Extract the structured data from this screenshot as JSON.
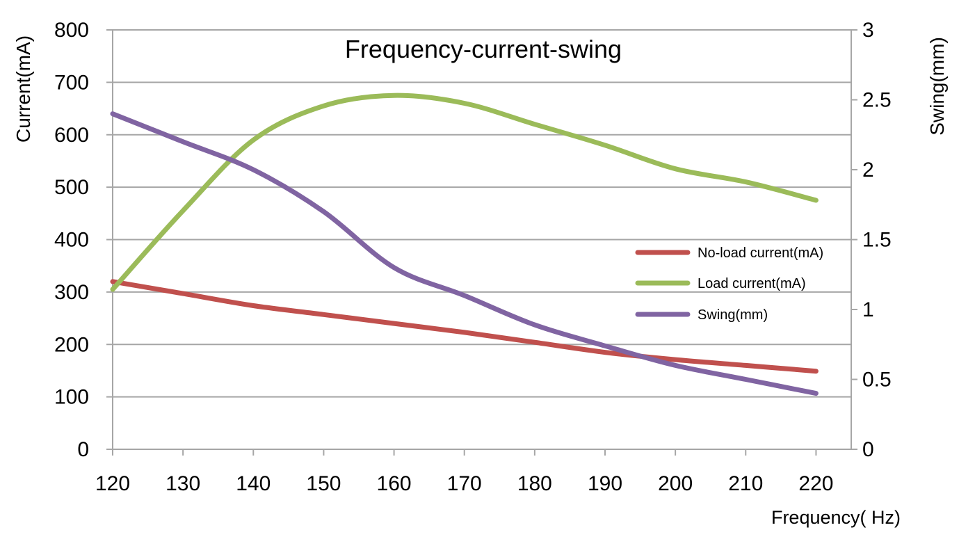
{
  "chart_data": {
    "type": "line",
    "title": "Frequency-current-swing",
    "xlabel": "Frequency( Hz)",
    "ylabel_left": "Current(mA)",
    "ylabel_right": "Swing(mm)",
    "x_ticks": [
      "120",
      "130",
      "140",
      "150",
      "160",
      "170",
      "180",
      "190",
      "200",
      "210",
      "220"
    ],
    "y_left_ticks": [
      "0",
      "100",
      "200",
      "300",
      "400",
      "500",
      "600",
      "700",
      "800"
    ],
    "y_right_ticks": [
      "0",
      "0.5",
      "1",
      "1.5",
      "2",
      "2.5",
      "3"
    ],
    "xlim": [
      120,
      225
    ],
    "ylim_left": [
      0,
      800
    ],
    "ylim_right": [
      0,
      3
    ],
    "grid": true,
    "legend_position": "right-middle",
    "series": [
      {
        "name": "No-load current(mA)",
        "axis": "left",
        "color": "#C0504D",
        "x": [
          120,
          130,
          140,
          150,
          160,
          170,
          180,
          190,
          200,
          210,
          220
        ],
        "values": [
          320,
          297,
          274,
          257,
          240,
          223,
          204,
          185,
          171,
          160,
          149
        ]
      },
      {
        "name": "Load current(mA)",
        "axis": "left",
        "color": "#9BBB59",
        "x": [
          120,
          130,
          140,
          150,
          160,
          170,
          180,
          190,
          200,
          210,
          220
        ],
        "values": [
          305,
          455,
          590,
          655,
          675,
          660,
          620,
          580,
          535,
          510,
          475
        ]
      },
      {
        "name": "Swing(mm)",
        "axis": "right",
        "color": "#8064A2",
        "x": [
          120,
          130,
          140,
          150,
          160,
          170,
          180,
          190,
          200,
          210,
          220
        ],
        "values": [
          2.4,
          2.2,
          2.0,
          1.7,
          1.3,
          1.1,
          0.89,
          0.74,
          0.6,
          0.5,
          0.4
        ]
      }
    ]
  }
}
